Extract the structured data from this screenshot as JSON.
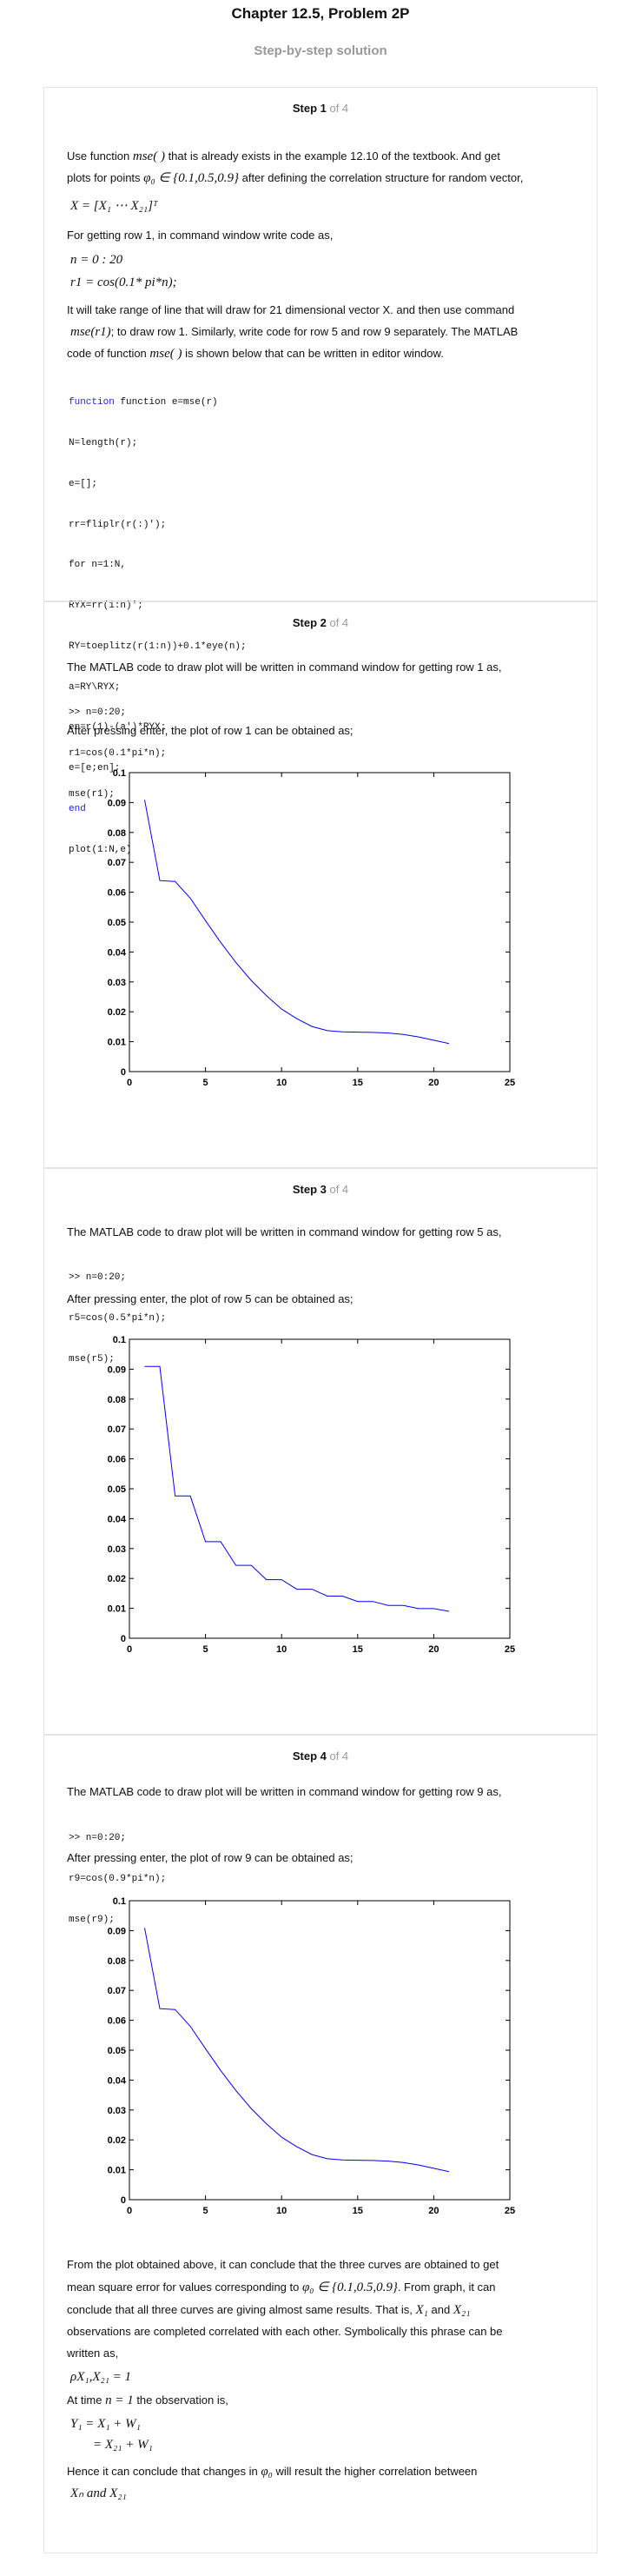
{
  "header": {
    "title": "Chapter 12.5, Problem 2P",
    "subtitle": "Step-by-step solution"
  },
  "steps": [
    {
      "label": "Step 1",
      "of": " of 4",
      "p1a": "Use function ",
      "p1_fn": "mse( )",
      "p1b": " that is already exists in the example 12.10 of the textbook. And get",
      "p2a": "plots for points ",
      "p2_set": "φ₀ ∈ {0.1,0.5,0.9}",
      "p2b": " after defining the correlation structure for random vector,",
      "eq_x": "X = [X₁  ⋯  X₂₁]ᵀ",
      "p3": "For getting row 1, in command window write code as,",
      "eq_n": "n = 0 : 20",
      "eq_r1": "r1 = cos(0.1* pi*n);",
      "p4": "It will take range of line that will draw for 21 dimensional vector X. and then use command",
      "p5a": "mse(r1)",
      "p5b": "; to draw row 1. Similarly, write code for row 5 and row 9 separately. The MATLAB",
      "p6a": "code of function ",
      "p6_fn": "mse( )",
      "p6b": " is shown below that can be written in editor window.",
      "code": [
        "function e=mse(r)",
        "N=length(r);",
        "e=[];",
        "rr=fliplr(r(:)');",
        "for n=1:N,",
        "RYX=rr(1:n)';",
        "RY=toeplitz(r(1:n))+0.1*eye(n);",
        "a=RY\\RYX;",
        "en=r(1)-(a')*RYX;",
        "e=[e;en];",
        "end",
        "plot(1:N,e);"
      ]
    },
    {
      "label": "Step 2",
      "of": " of 4",
      "p1": "The MATLAB code to draw plot will be written in command window for getting row 1 as,",
      "code": [
        ">> n=0:20;",
        "r1=cos(0.1*pi*n);",
        "mse(r1);"
      ],
      "p2": "After pressing enter, the plot of row 1 can be obtained as;"
    },
    {
      "label": "Step 3",
      "of": " of 4",
      "p1": "The MATLAB code to draw plot will be written in command window for getting row 5 as,",
      "code": [
        ">> n=0:20;",
        "r5=cos(0.5*pi*n);",
        "mse(r5);"
      ],
      "p2": "After pressing enter, the plot of row 5 can be obtained as;"
    },
    {
      "label": "Step 4",
      "of": " of 4",
      "p1": "The MATLAB code to draw plot will be written in command window for getting row 9 as,",
      "code": [
        ">> n=0:20;",
        "r9=cos(0.9*pi*n);",
        "mse(r9);"
      ],
      "p2": "After pressing enter, the plot of row 9 can be obtained as;",
      "c1": "From the plot obtained above, it can conclude that the three curves are obtained to get",
      "c2a": "mean square error for values corresponding to ",
      "c2_set": "φ₀ ∈ {0.1,0.5,0.9}",
      "c2b": ". From graph, it can",
      "c3a": "conclude that all three curves are giving almost same results. That is,  ",
      "c3_x": "X₁",
      "c3_and": " and ",
      "c3_x21": "X₂₁",
      "c4": "observations are completed correlated with each other. Symbolically this phrase can be",
      "c5": "written as,",
      "eq_rho": "ρX₁,X₂₁ = 1",
      "c6a": "At time ",
      "c6_n": "n = 1",
      "c6b": " the observation is,",
      "eq_y1": "Y₁ = X₁ + W₁",
      "eq_y2": "= X₂₁ + W₁",
      "c7a": "Hence it can conclude that changes in ",
      "c7_phi": "φ₀",
      "c7b": " will result the higher correlation between",
      "c8": "Xₙ and X₂₁"
    }
  ],
  "chart_data": [
    {
      "type": "line",
      "xlim": [
        0,
        25
      ],
      "ylim": [
        0,
        0.1
      ],
      "xticks": [
        "0",
        "5",
        "10",
        "15",
        "20",
        "25"
      ],
      "yticks": [
        "0",
        "0.01",
        "0.02",
        "0.03",
        "0.04",
        "0.05",
        "0.06",
        "0.07",
        "0.08",
        "0.09",
        "0.1"
      ],
      "color": "#0000ff",
      "x": [
        1,
        2,
        3,
        4,
        5,
        6,
        7,
        8,
        9,
        10,
        11,
        12,
        13,
        14,
        15,
        16,
        17,
        18,
        19,
        20,
        21
      ],
      "y": [
        0.0909,
        0.0639,
        0.0636,
        0.058,
        0.0505,
        0.0432,
        0.0365,
        0.0305,
        0.0254,
        0.0209,
        0.0177,
        0.0151,
        0.0137,
        0.0133,
        0.0132,
        0.0131,
        0.0129,
        0.0124,
        0.0116,
        0.0105,
        0.0094
      ]
    },
    {
      "type": "line",
      "xlim": [
        0,
        25
      ],
      "ylim": [
        0,
        0.1
      ],
      "xticks": [
        "0",
        "5",
        "10",
        "15",
        "20",
        "25"
      ],
      "yticks": [
        "0",
        "0.01",
        "0.02",
        "0.03",
        "0.04",
        "0.05",
        "0.06",
        "0.07",
        "0.08",
        "0.09",
        "0.1"
      ],
      "color": "#0000ff",
      "x": [
        1,
        2,
        3,
        4,
        5,
        6,
        7,
        8,
        9,
        10,
        11,
        12,
        13,
        14,
        15,
        16,
        17,
        18,
        19,
        20,
        21
      ],
      "y": [
        0.0909,
        0.0909,
        0.0476,
        0.0476,
        0.0323,
        0.0323,
        0.0244,
        0.0244,
        0.0196,
        0.0196,
        0.0164,
        0.0164,
        0.0141,
        0.0141,
        0.0123,
        0.0123,
        0.011,
        0.011,
        0.0099,
        0.0099,
        0.009
      ]
    },
    {
      "type": "line",
      "xlim": [
        0,
        25
      ],
      "ylim": [
        0,
        0.1
      ],
      "xticks": [
        "0",
        "5",
        "10",
        "15",
        "20",
        "25"
      ],
      "yticks": [
        "0",
        "0.01",
        "0.02",
        "0.03",
        "0.04",
        "0.05",
        "0.06",
        "0.07",
        "0.08",
        "0.09",
        "0.1"
      ],
      "color": "#0000ff",
      "x": [
        1,
        2,
        3,
        4,
        5,
        6,
        7,
        8,
        9,
        10,
        11,
        12,
        13,
        14,
        15,
        16,
        17,
        18,
        19,
        20,
        21
      ],
      "y": [
        0.0909,
        0.0639,
        0.0636,
        0.058,
        0.0505,
        0.0432,
        0.0365,
        0.0305,
        0.0254,
        0.0209,
        0.0177,
        0.0151,
        0.0137,
        0.0133,
        0.0132,
        0.0131,
        0.0129,
        0.0124,
        0.0116,
        0.0105,
        0.0094
      ]
    }
  ]
}
